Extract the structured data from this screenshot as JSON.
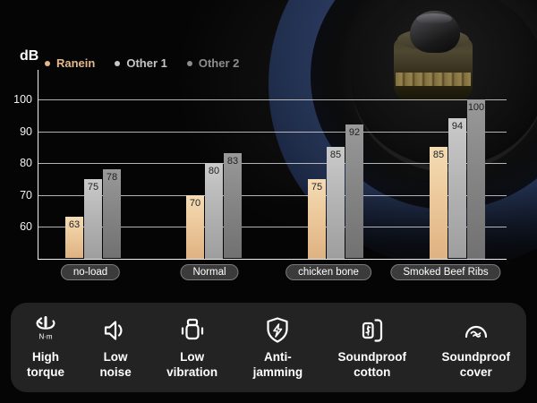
{
  "chart_data": {
    "type": "bar",
    "title": "",
    "unit_label": "dB",
    "categories": [
      "no-load",
      "Normal",
      "chicken bone",
      "Smoked Beef Ribs"
    ],
    "series": [
      {
        "name": "Ranein",
        "color": "#e2b88b",
        "values": [
          63,
          70,
          75,
          85
        ]
      },
      {
        "name": "Other 1",
        "color": "#c6c6c6",
        "values": [
          75,
          80,
          85,
          94
        ]
      },
      {
        "name": "Other 2",
        "color": "#8d8d8d",
        "values": [
          78,
          83,
          92,
          100
        ]
      }
    ],
    "ylabel": "dB",
    "yticks": [
      60,
      70,
      80,
      90,
      100
    ],
    "ylim": [
      50,
      105
    ],
    "grid": true,
    "legend_position": "top-left",
    "value_labels": "inside-top"
  },
  "features": [
    {
      "icon": "torque-icon",
      "badge": "N·m",
      "label": "High\ntorque"
    },
    {
      "icon": "speaker-icon",
      "label": "Low\nnoise"
    },
    {
      "icon": "vibration-icon",
      "label": "Low\nvibration"
    },
    {
      "icon": "shield-icon",
      "label": "Anti-\njamming"
    },
    {
      "icon": "cotton-icon",
      "label": "Soundproof\ncotton"
    },
    {
      "icon": "cover-icon",
      "label": "Soundproof\ncover"
    }
  ]
}
